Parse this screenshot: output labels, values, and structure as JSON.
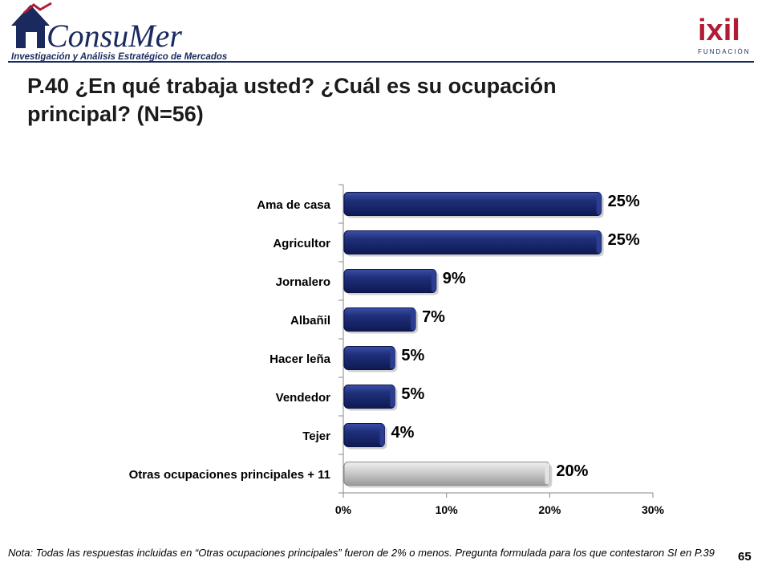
{
  "header": {
    "consumer_logo_text": "ConsuMer",
    "consumer_tagline": "Investigación y Análisis Estratégico de Mercados",
    "ixil_logo_text": "ixil",
    "ixil_sub": "FUNDACIÓN"
  },
  "title": "P.40 ¿En qué trabaja usted? ¿Cuál es su ocupación principal? (N=56)",
  "footnote": "Nota: Todas las respuestas incluidas en “Otras ocupaciones principales” fueron de 2% o menos. Pregunta formulada para los que contestaron SI en P.39",
  "page_number": "65",
  "colors": {
    "bar_primary": "#1f2f7a",
    "bar_primary_dark": "#0f1a52",
    "bar_other": "#cfcfcf",
    "bar_other_dark": "#9a9a9a",
    "brand_navy": "#1a2a5e",
    "brand_red": "#b31b34"
  },
  "chart_data": {
    "type": "bar",
    "orientation": "horizontal",
    "categories": [
      "Ama de casa",
      "Agricultor",
      "Jornalero",
      "Albañil",
      "Hacer leña",
      "Vendedor",
      "Tejer",
      "Otras ocupaciones principales + 11"
    ],
    "values": [
      25,
      25,
      9,
      7,
      5,
      5,
      4,
      20
    ],
    "data_labels": [
      "25%",
      "25%",
      "9%",
      "7%",
      "5%",
      "5%",
      "4%",
      "20%"
    ],
    "highlight": [
      false,
      false,
      false,
      false,
      false,
      false,
      false,
      true
    ],
    "xlim": [
      0,
      30
    ],
    "x_ticks": [
      0,
      10,
      20,
      30
    ],
    "x_tick_labels": [
      "0%",
      "10%",
      "20%",
      "30%"
    ],
    "grid": false,
    "title": "",
    "xlabel": "",
    "ylabel": ""
  }
}
